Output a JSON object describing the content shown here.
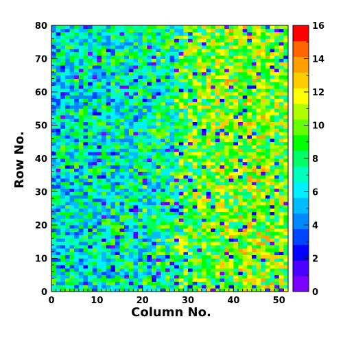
{
  "chart_data": {
    "type": "heatmap",
    "title": "",
    "xlabel": "Column No.",
    "ylabel": "Row No.",
    "x_bins": 52,
    "y_bins": 80,
    "xlim": [
      0,
      52
    ],
    "ylim": [
      0,
      80
    ],
    "x_ticks": [
      "0",
      "10",
      "20",
      "30",
      "40",
      "50"
    ],
    "y_ticks": [
      "0",
      "10",
      "20",
      "30",
      "40",
      "50",
      "60",
      "70",
      "80"
    ],
    "z_range": [
      0,
      16
    ],
    "colorbar_ticks": [
      "0",
      "2",
      "4",
      "6",
      "8",
      "10",
      "12",
      "14",
      "16"
    ],
    "grid": false,
    "mean_level_by_column": {
      "columns": [
        0,
        10,
        20,
        26,
        30,
        40,
        45,
        51
      ],
      "values": [
        6.7,
        7.2,
        7.6,
        8.4,
        10.0,
        10.8,
        11.2,
        10.2
      ]
    },
    "noise_amplitude": 3.5,
    "low_count_fraction": 0.06,
    "colormap": [
      "#7a00ff",
      "#4b00ff",
      "#0000ff",
      "#0044ff",
      "#0088ff",
      "#00bbff",
      "#00f0ff",
      "#00ffbb",
      "#00ff66",
      "#00ff00",
      "#66ff00",
      "#b0ff00",
      "#ffff00",
      "#ffcc00",
      "#ffa000",
      "#ff6600",
      "#ff0000"
    ]
  }
}
